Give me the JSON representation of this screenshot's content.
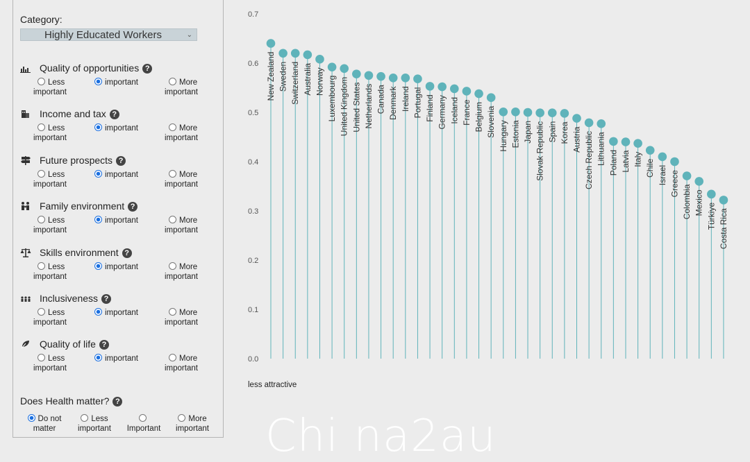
{
  "sidebar": {
    "category_label": "Category:",
    "category_value": "Highly Educated Workers",
    "factors": [
      {
        "title": "Quality of opportunities",
        "icon": "bar-chart-icon"
      },
      {
        "title": "Income and tax",
        "icon": "building-icon"
      },
      {
        "title": "Future prospects",
        "icon": "signpost-icon"
      },
      {
        "title": "Family environment",
        "icon": "family-icon"
      },
      {
        "title": "Skills environment",
        "icon": "scales-icon"
      },
      {
        "title": "Inclusiveness",
        "icon": "people-icon"
      },
      {
        "title": "Quality of life",
        "icon": "leaf-icon"
      }
    ],
    "options": {
      "less": [
        "Less",
        "important"
      ],
      "important": "important",
      "more": [
        "More",
        "important"
      ]
    },
    "selected_option": "important",
    "health": {
      "title": "Does Health matter?",
      "options": [
        [
          "Do not",
          "matter"
        ],
        [
          "Less",
          "important"
        ],
        [
          "Important",
          ""
        ],
        [
          "More",
          "important"
        ]
      ],
      "selected_index": 0
    }
  },
  "chart_data": {
    "type": "lollipop",
    "ylim": [
      0,
      0.7
    ],
    "yticks": [
      0.0,
      0.1,
      0.2,
      0.3,
      0.4,
      0.5,
      0.6,
      0.7
    ],
    "note": "less attractive",
    "accent_color": "#5fb3ba",
    "categories": [
      "New Zealand",
      "Sweden",
      "Switzerland",
      "Australia",
      "Norway",
      "Luxembourg",
      "United Kingdom",
      "United States",
      "Netherlands",
      "Canada",
      "Denmark",
      "Ireland",
      "Portugal",
      "Finland",
      "Germany",
      "Iceland",
      "France",
      "Belgium",
      "Slovenia",
      "Hungary",
      "Estonia",
      "Japan",
      "Slovak Republic",
      "Spain",
      "Korea",
      "Austria",
      "Czech Republic",
      "Lithuania",
      "Poland",
      "Latvia",
      "Italy",
      "Chile",
      "Israel",
      "Greece",
      "Colombia",
      "Mexico",
      "Türkiye",
      "Costa Rica"
    ],
    "values": [
      0.64,
      0.62,
      0.62,
      0.617,
      0.608,
      0.592,
      0.589,
      0.578,
      0.575,
      0.573,
      0.57,
      0.57,
      0.568,
      0.553,
      0.552,
      0.548,
      0.543,
      0.538,
      0.53,
      0.501,
      0.501,
      0.5,
      0.499,
      0.499,
      0.498,
      0.488,
      0.479,
      0.477,
      0.441,
      0.44,
      0.437,
      0.423,
      0.41,
      0.4,
      0.371,
      0.36,
      0.334,
      0.322
    ]
  },
  "watermark": "Chi na2au"
}
